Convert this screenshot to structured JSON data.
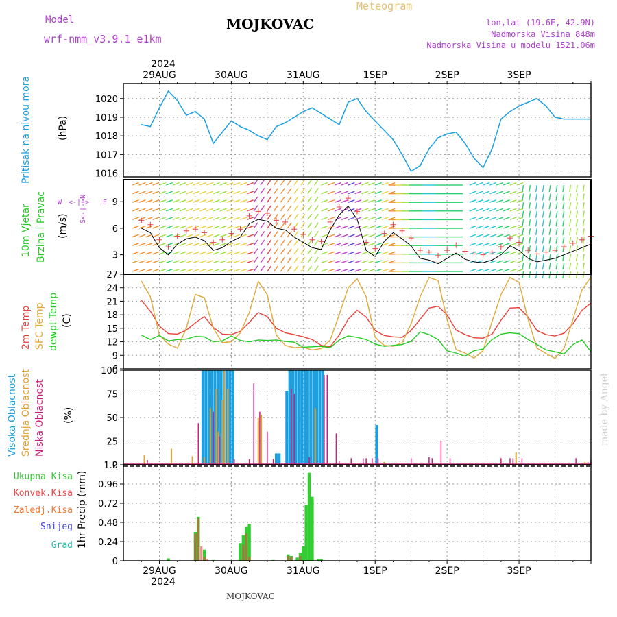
{
  "header": {
    "model_label": "Model",
    "model_name": "wrf-nmm_v3.9.1 e1km",
    "station_title": "MOJKOVAC",
    "product": "Meteogram",
    "coords": "lon,lat (19.6E, 42.9N)",
    "elevation": "Nadmorska Visina 848m",
    "model_elevation": "Nadmorska Visina u modelu 1521.06m",
    "footer_station": "MOJKOVAC",
    "watermark": "made by Angel"
  },
  "colors": {
    "pressure": "#1a9fe0",
    "wind_speed": "#000000",
    "temp2m": "#e8413a",
    "sfc_temp": "#e0a83a",
    "dewpt": "#22cc22",
    "cloud_high": "#1a9fe0",
    "cloud_mid": "#e0a030",
    "cloud_low": "#c8207a",
    "precip_total": "#33cc33",
    "precip_conv": "#ee4444",
    "precip_frz": "#ee7733",
    "precip_snow": "#4444dd",
    "precip_grad": "#22bbaa",
    "title_model": "#b040d0",
    "title_meteo": "#e8c070"
  },
  "axis": {
    "year": "2024",
    "days": [
      "29AUG",
      "30AUG",
      "31AUG",
      "1SEP",
      "2SEP",
      "3SEP"
    ]
  },
  "chart_data": [
    {
      "type": "line",
      "panel": "pressure",
      "ylabel_side": "Pritisak na nivou mora",
      "ylabel": "(hPa)",
      "yticks": [
        "1016",
        "1017",
        "1018",
        "1019",
        "1020"
      ],
      "ylim": [
        1015.8,
        1020.8
      ],
      "x_hours": [
        0,
        3,
        6,
        9,
        12,
        15,
        18,
        21,
        24,
        27,
        30,
        33,
        36,
        39,
        42,
        45,
        48,
        51,
        54,
        57,
        60,
        63,
        66,
        69,
        72,
        75,
        78,
        81,
        84,
        87,
        90,
        93,
        96,
        99,
        102,
        105,
        108,
        111,
        114,
        117,
        120,
        123,
        126,
        129,
        132,
        135,
        138,
        141,
        144,
        147,
        150
      ],
      "values": [
        1018.6,
        1018.5,
        1019.5,
        1020.4,
        1019.9,
        1019.1,
        1019.3,
        1018.9,
        1017.6,
        1018.2,
        1018.8,
        1018.5,
        1018.3,
        1018.0,
        1017.8,
        1018.5,
        1018.7,
        1019.0,
        1019.3,
        1019.5,
        1019.2,
        1018.9,
        1018.6,
        1019.8,
        1020.0,
        1019.3,
        1018.8,
        1018.3,
        1017.8,
        1017.0,
        1016.1,
        1016.4,
        1017.3,
        1017.9,
        1018.1,
        1018.2,
        1017.6,
        1016.8,
        1016.3,
        1017.3,
        1018.9,
        1019.3,
        1019.6,
        1019.8,
        1020.0,
        1019.6,
        1019.0,
        1018.9,
        1018.9,
        1018.9,
        1018.9
      ]
    },
    {
      "type": "line",
      "panel": "wind",
      "ylabel_side": "10m Vjetar Brzina i Pravac",
      "ylabel": "(m/s)",
      "yticks": [
        "3",
        "6",
        "9"
      ],
      "ylim": [
        0.8,
        11.5
      ],
      "compass": [
        "W",
        "<-",
        "|",
        "->",
        "E"
      ],
      "x_hours": [
        0,
        3,
        6,
        9,
        12,
        15,
        18,
        21,
        24,
        27,
        30,
        33,
        36,
        39,
        42,
        45,
        48,
        51,
        54,
        57,
        60,
        63,
        66,
        69,
        72,
        75,
        78,
        81,
        84,
        87,
        90,
        93,
        96,
        99,
        102,
        105,
        108,
        111,
        114,
        117,
        120,
        123,
        126,
        129,
        132,
        135,
        138,
        141,
        144,
        147,
        150
      ],
      "values": [
        6.0,
        5.5,
        3.8,
        3.0,
        4.2,
        4.8,
        5.0,
        4.6,
        3.5,
        3.8,
        4.5,
        5.0,
        6.5,
        7.0,
        6.8,
        6.0,
        5.8,
        5.0,
        4.4,
        3.8,
        3.6,
        5.8,
        7.5,
        8.5,
        7.0,
        3.5,
        2.8,
        4.5,
        5.5,
        4.8,
        4.0,
        2.6,
        2.4,
        2.0,
        2.6,
        3.2,
        2.5,
        2.2,
        2.1,
        2.4,
        3.0,
        4.0,
        3.5,
        2.6,
        2.2,
        2.4,
        2.6,
        3.0,
        3.4,
        3.8,
        4.2
      ]
    },
    {
      "type": "line",
      "panel": "temperature",
      "ylabel_side": "2m Temp SFC Temp dewpt Temp",
      "ylabel": "(C)",
      "yticks": [
        "6",
        "9",
        "12",
        "15",
        "18",
        "21",
        "24",
        "27"
      ],
      "ylim": [
        6,
        27
      ],
      "series": [
        {
          "name": "2m Temp",
          "values": [
            21.2,
            18.8,
            15.5,
            13.8,
            13.7,
            14.6,
            16.2,
            17.6,
            15.2,
            13.7,
            13.6,
            14.3,
            16.3,
            18.5,
            17.6,
            15.0,
            14.0,
            13.6,
            13.1,
            12.5,
            11.2,
            10.9,
            13.5,
            17.0,
            19.0,
            17.5,
            14.5,
            13.4,
            13.1,
            13.0,
            14.5,
            17.0,
            19.5,
            19.9,
            18.0,
            14.6,
            13.6,
            12.9,
            12.8,
            13.7,
            16.8,
            19.5,
            19.6,
            17.5,
            14.5,
            13.6,
            13.3,
            13.9,
            16.0,
            19.0,
            20.6
          ]
        },
        {
          "name": "SFC Temp",
          "values": [
            25.5,
            22.0,
            13.5,
            11.5,
            10.6,
            15.0,
            22.5,
            21.8,
            15.0,
            11.8,
            12.0,
            14.0,
            18.5,
            25.4,
            22.5,
            13.5,
            11.2,
            10.7,
            10.8,
            10.2,
            10.5,
            12.4,
            18.0,
            24.0,
            26.0,
            22.0,
            13.0,
            11.2,
            11.0,
            11.8,
            16.0,
            22.0,
            26.3,
            25.6,
            17.0,
            10.3,
            9.5,
            8.4,
            10.0,
            16.5,
            22.5,
            26.3,
            25.2,
            17.0,
            10.6,
            9.4,
            8.3,
            10.5,
            17.0,
            23.5,
            26.4
          ]
        },
        {
          "name": "dewpt Temp",
          "values": [
            13.5,
            12.5,
            13.4,
            12.2,
            12.5,
            12.6,
            13.2,
            13.1,
            12.0,
            12.2,
            13.3,
            12.3,
            12.0,
            12.4,
            12.3,
            12.4,
            12.1,
            11.9,
            10.8,
            10.9,
            11.0,
            10.7,
            12.4,
            13.3,
            13.0,
            12.5,
            11.5,
            11.0,
            11.2,
            11.4,
            12.1,
            14.2,
            13.6,
            12.5,
            10.0,
            9.5,
            8.8,
            10.0,
            10.4,
            12.5,
            13.7,
            14.0,
            13.8,
            12.5,
            11.4,
            10.2,
            9.8,
            9.3,
            11.4,
            12.4,
            9.8
          ]
        }
      ],
      "x_hours": [
        0,
        3,
        6,
        9,
        12,
        15,
        18,
        21,
        24,
        27,
        30,
        33,
        36,
        39,
        42,
        45,
        48,
        51,
        54,
        57,
        60,
        63,
        66,
        69,
        72,
        75,
        78,
        81,
        84,
        87,
        90,
        93,
        96,
        99,
        102,
        105,
        108,
        111,
        114,
        117,
        120,
        123,
        126,
        129,
        132,
        135,
        138,
        141,
        144,
        147,
        150
      ]
    },
    {
      "type": "bar",
      "panel": "clouds",
      "ylabel_side": [
        "Visoka Oblacnost",
        "Srednja Oblacnost",
        "Niska Oblacnost"
      ],
      "ylabel": "(%)",
      "yticks": [
        "0",
        "25",
        "50",
        "75",
        "100"
      ],
      "ylim": [
        0,
        100
      ],
      "series": [
        {
          "name": "Visoka Oblacnost",
          "points": [
            [
              20.5,
              100
            ],
            [
              21.5,
              100
            ],
            [
              22.5,
              100
            ],
            [
              23.5,
              100
            ],
            [
              24.5,
              100
            ],
            [
              25.5,
              100
            ],
            [
              26.5,
              100
            ],
            [
              27.5,
              100
            ],
            [
              28.5,
              100
            ],
            [
              29.5,
              100
            ],
            [
              30.5,
              100
            ],
            [
              45,
              12
            ],
            [
              46,
              12
            ],
            [
              48.5,
              78
            ],
            [
              49.5,
              100
            ],
            [
              50.5,
              100
            ],
            [
              51.5,
              100
            ],
            [
              52.5,
              100
            ],
            [
              53.5,
              100
            ],
            [
              54.5,
              100
            ],
            [
              55.5,
              100
            ],
            [
              56.5,
              100
            ],
            [
              57.5,
              100
            ],
            [
              58.5,
              100
            ],
            [
              59.5,
              100
            ],
            [
              60.5,
              100
            ],
            [
              78.5,
              42
            ]
          ]
        },
        {
          "name": "Srednja Oblacnost",
          "points": [
            [
              1,
              10
            ],
            [
              10,
              17
            ],
            [
              17,
              9
            ],
            [
              21,
              8
            ],
            [
              23,
              60
            ],
            [
              25,
              80
            ],
            [
              25.7,
              35
            ],
            [
              27,
              68
            ],
            [
              27.7,
              100
            ],
            [
              28.8,
              80
            ],
            [
              39,
              50
            ],
            [
              40,
              53
            ],
            [
              58,
              60
            ],
            [
              81,
              3
            ],
            [
              125,
              13
            ],
            [
              148,
              3
            ]
          ]
        },
        {
          "name": "Niska Oblacnost",
          "points": [
            [
              2,
              5
            ],
            [
              19,
              44
            ],
            [
              24,
              56
            ],
            [
              26,
              30
            ],
            [
              31,
              6
            ],
            [
              36,
              6
            ],
            [
              37.5,
              86
            ],
            [
              39.5,
              56
            ],
            [
              42,
              35
            ],
            [
              44,
              6
            ],
            [
              50,
              80
            ],
            [
              51,
              75
            ],
            [
              56,
              8
            ],
            [
              61,
              95
            ],
            [
              62,
              95
            ],
            [
              65,
              33
            ],
            [
              66,
              4
            ],
            [
              70,
              7
            ],
            [
              74,
              7
            ],
            [
              75,
              7
            ],
            [
              77,
              7
            ],
            [
              79,
              7
            ],
            [
              90,
              7
            ],
            [
              96,
              8
            ],
            [
              97,
              7
            ],
            [
              100,
              25
            ],
            [
              103,
              7
            ],
            [
              120,
              7
            ],
            [
              123,
              7
            ],
            [
              124,
              7
            ],
            [
              127,
              7
            ],
            [
              145,
              7
            ],
            [
              149,
              3
            ],
            [
              150,
              5
            ]
          ]
        }
      ]
    },
    {
      "type": "bar",
      "panel": "precipitation",
      "ylabel": "1hr Precip (mm)",
      "yticks": [
        "0",
        "0.24",
        "0.48",
        "0.72",
        "0.96",
        "1.2"
      ],
      "ylim": [
        0,
        1.2
      ],
      "legend": [
        "Ukupna Kisa",
        "Konvek.Kisa",
        "Zaledj.Kisa",
        "Snijeg",
        "Grad"
      ],
      "series": [
        {
          "name": "Ukupna Kisa",
          "points": [
            [
              9,
              0.03
            ],
            [
              18,
              0.36
            ],
            [
              19,
              0.55
            ],
            [
              21,
              0.14
            ],
            [
              24,
              0.01
            ],
            [
              33,
              0.22
            ],
            [
              34,
              0.32
            ],
            [
              35,
              0.43
            ],
            [
              36,
              0.46
            ],
            [
              44,
              0.01
            ],
            [
              49,
              0.08
            ],
            [
              50,
              0.06
            ],
            [
              52,
              0.04
            ],
            [
              53,
              0.1
            ],
            [
              54,
              0.18
            ],
            [
              55,
              0.7
            ],
            [
              56,
              1.1
            ],
            [
              57,
              0.8
            ],
            [
              59,
              0.02
            ],
            [
              60,
              0.02
            ]
          ]
        },
        {
          "name": "Konvek.Kisa",
          "points": [
            [
              18,
              0.34
            ],
            [
              19,
              0.53
            ],
            [
              20,
              0.18
            ],
            [
              21,
              0.05
            ],
            [
              22,
              0.02
            ],
            [
              34,
              0.2
            ],
            [
              35,
              0.34
            ],
            [
              36,
              0.05
            ],
            [
              49,
              0.06
            ],
            [
              50,
              0.05
            ],
            [
              53,
              0.06
            ]
          ]
        },
        {
          "name": "Zaledj.Kisa",
          "points": []
        },
        {
          "name": "Snijeg",
          "points": []
        },
        {
          "name": "Grad",
          "points": []
        }
      ]
    }
  ]
}
